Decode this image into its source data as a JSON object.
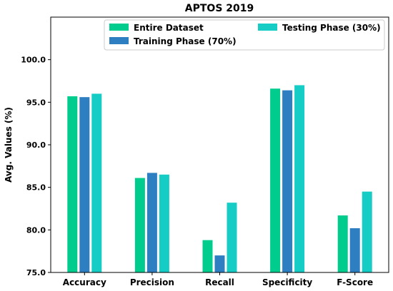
{
  "chart_data": {
    "type": "bar",
    "title": "APTOS 2019",
    "xlabel": "",
    "ylabel": "Avg. Values (%)",
    "ylim": [
      75.0,
      105.0
    ],
    "yticks": [
      "75.0",
      "80.0",
      "85.0",
      "90.0",
      "95.0",
      "100.0"
    ],
    "grid": false,
    "legend_position": "top",
    "categories": [
      "Accuracy",
      "Precision",
      "Recall",
      "Specificity",
      "F-Score"
    ],
    "series": [
      {
        "name": "Entire Dataset",
        "color": "#00cc8e",
        "values": [
          95.7,
          86.1,
          78.8,
          96.6,
          81.7
        ]
      },
      {
        "name": "Training Phase (70%)",
        "color": "#2e7fc1",
        "values": [
          95.6,
          86.7,
          77.0,
          96.4,
          80.2
        ]
      },
      {
        "name": "Testing Phase (30%)",
        "color": "#16cdc6",
        "values": [
          96.0,
          86.5,
          83.2,
          97.0,
          84.5
        ]
      }
    ]
  }
}
